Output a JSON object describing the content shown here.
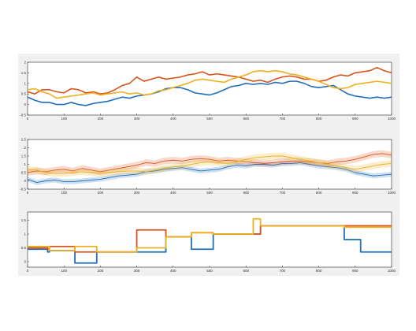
{
  "colors": {
    "series1": "#1f6fba",
    "series2": "#d9541a",
    "series3": "#edb120",
    "figure_bg": "#f0f0f0",
    "axes_bg": "#ffffff",
    "axis": "#262626"
  },
  "chart_data": [
    {
      "type": "line",
      "x_ticks": [
        "0",
        "100",
        "200",
        "300",
        "400",
        "500",
        "600",
        "700",
        "800",
        "900",
        "1000"
      ],
      "y_ticks": [
        "-0.5",
        "0",
        "0.5",
        "1",
        "1.5",
        "2"
      ],
      "xlim": [
        0,
        1000
      ],
      "ylim": [
        -0.5,
        2
      ],
      "series": [
        {
          "color": "series1",
          "x": [
            0,
            20,
            40,
            60,
            80,
            100,
            120,
            140,
            160,
            180,
            200,
            220,
            240,
            260,
            280,
            300,
            320,
            340,
            360,
            380,
            400,
            420,
            440,
            460,
            480,
            500,
            520,
            540,
            560,
            580,
            600,
            620,
            640,
            660,
            680,
            700,
            720,
            740,
            760,
            780,
            800,
            820,
            840,
            860,
            880,
            900,
            920,
            940,
            960,
            980,
            1000
          ],
          "y": [
            0.35,
            0.2,
            0.1,
            0.1,
            0.0,
            0.0,
            0.1,
            0.0,
            -0.05,
            0.05,
            0.1,
            0.15,
            0.25,
            0.35,
            0.3,
            0.4,
            0.45,
            0.5,
            0.6,
            0.75,
            0.8,
            0.8,
            0.7,
            0.55,
            0.5,
            0.45,
            0.55,
            0.7,
            0.85,
            0.9,
            1.0,
            0.95,
            1.0,
            0.95,
            1.05,
            1.0,
            1.1,
            1.1,
            1.0,
            0.85,
            0.8,
            0.85,
            0.9,
            0.7,
            0.5,
            0.4,
            0.35,
            0.3,
            0.35,
            0.3,
            0.35
          ]
        },
        {
          "color": "series2",
          "x": [
            0,
            20,
            40,
            60,
            80,
            100,
            120,
            140,
            160,
            180,
            200,
            220,
            240,
            260,
            280,
            300,
            320,
            340,
            360,
            380,
            400,
            420,
            440,
            460,
            480,
            500,
            520,
            540,
            560,
            580,
            600,
            620,
            640,
            660,
            680,
            700,
            720,
            740,
            760,
            780,
            800,
            820,
            840,
            860,
            880,
            900,
            920,
            940,
            960,
            980,
            1000
          ],
          "y": [
            0.6,
            0.5,
            0.7,
            0.7,
            0.6,
            0.55,
            0.75,
            0.7,
            0.55,
            0.6,
            0.5,
            0.55,
            0.7,
            0.9,
            1.0,
            1.3,
            1.1,
            1.2,
            1.3,
            1.2,
            1.25,
            1.3,
            1.4,
            1.45,
            1.55,
            1.4,
            1.45,
            1.4,
            1.35,
            1.3,
            1.2,
            1.1,
            1.15,
            1.05,
            1.2,
            1.3,
            1.35,
            1.3,
            1.2,
            1.2,
            1.1,
            1.15,
            1.3,
            1.4,
            1.35,
            1.5,
            1.55,
            1.6,
            1.75,
            1.6,
            1.5
          ]
        },
        {
          "color": "series3",
          "x": [
            0,
            20,
            40,
            60,
            80,
            100,
            120,
            140,
            160,
            180,
            200,
            220,
            240,
            260,
            280,
            300,
            320,
            340,
            360,
            380,
            400,
            420,
            440,
            460,
            480,
            500,
            520,
            540,
            560,
            580,
            600,
            620,
            640,
            660,
            680,
            700,
            720,
            740,
            760,
            780,
            800,
            820,
            840,
            860,
            880,
            900,
            920,
            940,
            960,
            980,
            1000
          ],
          "y": [
            0.7,
            0.75,
            0.6,
            0.5,
            0.3,
            0.35,
            0.4,
            0.45,
            0.5,
            0.55,
            0.45,
            0.5,
            0.55,
            0.6,
            0.5,
            0.55,
            0.45,
            0.5,
            0.65,
            0.7,
            0.8,
            0.9,
            1.0,
            1.15,
            1.2,
            1.15,
            1.1,
            1.05,
            1.2,
            1.3,
            1.4,
            1.55,
            1.6,
            1.55,
            1.6,
            1.55,
            1.45,
            1.4,
            1.3,
            1.2,
            1.1,
            0.95,
            0.8,
            0.75,
            0.8,
            0.95,
            1.0,
            1.05,
            1.1,
            1.05,
            1.0
          ]
        }
      ]
    },
    {
      "type": "area",
      "x_ticks": [
        "0",
        "100",
        "200",
        "300",
        "400",
        "500",
        "600",
        "700",
        "800",
        "900",
        "1000"
      ],
      "y_ticks": [
        "-0.5",
        "0",
        "0.5",
        "1",
        "1.5",
        "2",
        "2.5"
      ],
      "xlim": [
        0,
        1000
      ],
      "ylim": [
        -0.5,
        2.5
      ],
      "series": [
        {
          "color": "series1",
          "band": 0.15,
          "x": [
            0,
            25,
            50,
            75,
            100,
            125,
            150,
            175,
            200,
            225,
            250,
            275,
            300,
            325,
            350,
            375,
            400,
            425,
            450,
            475,
            500,
            525,
            550,
            575,
            600,
            625,
            650,
            675,
            700,
            725,
            750,
            775,
            800,
            825,
            850,
            875,
            900,
            925,
            950,
            975,
            1000
          ],
          "y": [
            0.1,
            -0.1,
            0.0,
            0.05,
            -0.05,
            -0.05,
            0.0,
            0.05,
            0.1,
            0.2,
            0.3,
            0.35,
            0.4,
            0.55,
            0.6,
            0.7,
            0.75,
            0.8,
            0.7,
            0.6,
            0.65,
            0.7,
            0.85,
            0.95,
            0.9,
            1.0,
            1.0,
            0.95,
            1.05,
            1.05,
            1.1,
            1.0,
            0.9,
            0.85,
            0.8,
            0.7,
            0.5,
            0.4,
            0.3,
            0.35,
            0.4
          ]
        },
        {
          "color": "series2",
          "band": 0.2,
          "x": [
            0,
            25,
            50,
            75,
            100,
            125,
            150,
            175,
            200,
            225,
            250,
            275,
            300,
            325,
            350,
            375,
            400,
            425,
            450,
            475,
            500,
            525,
            550,
            575,
            600,
            625,
            650,
            675,
            700,
            725,
            750,
            775,
            800,
            825,
            850,
            875,
            900,
            925,
            950,
            975,
            1000
          ],
          "y": [
            0.5,
            0.6,
            0.55,
            0.65,
            0.7,
            0.6,
            0.75,
            0.65,
            0.55,
            0.65,
            0.75,
            0.85,
            0.95,
            1.1,
            1.05,
            1.2,
            1.25,
            1.2,
            1.3,
            1.35,
            1.3,
            1.2,
            1.25,
            1.2,
            1.15,
            1.1,
            1.05,
            1.1,
            1.15,
            1.2,
            1.2,
            1.15,
            1.1,
            1.05,
            1.15,
            1.2,
            1.3,
            1.45,
            1.6,
            1.65,
            1.55
          ]
        },
        {
          "color": "series3",
          "band": 0.2,
          "x": [
            0,
            25,
            50,
            75,
            100,
            125,
            150,
            175,
            200,
            225,
            250,
            275,
            300,
            325,
            350,
            375,
            400,
            425,
            450,
            475,
            500,
            525,
            550,
            575,
            600,
            625,
            650,
            675,
            700,
            725,
            750,
            775,
            800,
            825,
            850,
            875,
            900,
            925,
            950,
            975,
            1000
          ],
          "y": [
            0.7,
            0.65,
            0.5,
            0.45,
            0.45,
            0.5,
            0.55,
            0.5,
            0.45,
            0.5,
            0.55,
            0.6,
            0.6,
            0.55,
            0.65,
            0.75,
            0.85,
            0.9,
            1.0,
            1.1,
            1.15,
            1.1,
            1.05,
            1.15,
            1.3,
            1.4,
            1.45,
            1.5,
            1.5,
            1.4,
            1.3,
            1.2,
            1.1,
            1.0,
            0.9,
            0.8,
            0.7,
            0.8,
            0.9,
            1.0,
            1.05
          ]
        }
      ]
    },
    {
      "type": "line",
      "step": true,
      "x_ticks": [
        "0",
        "100",
        "200",
        "300",
        "400",
        "500",
        "600",
        "700",
        "800",
        "900",
        "1000"
      ],
      "y_ticks": [
        "0",
        "0.5",
        "1",
        "1.5"
      ],
      "xlim": [
        0,
        1000
      ],
      "ylim": [
        -0.2,
        1.8
      ],
      "series": [
        {
          "color": "series1",
          "x": [
            0,
            55,
            60,
            130,
            190,
            300,
            380,
            450,
            510,
            620,
            640,
            870,
            915,
            1000
          ],
          "y": [
            0.45,
            0.35,
            0.4,
            -0.05,
            0.35,
            0.35,
            0.9,
            0.45,
            1.0,
            1.0,
            1.3,
            0.8,
            0.35,
            0.35
          ]
        },
        {
          "color": "series2",
          "x": [
            0,
            55,
            60,
            130,
            190,
            300,
            380,
            450,
            510,
            620,
            640,
            870,
            915,
            1000
          ],
          "y": [
            0.5,
            0.45,
            0.55,
            0.35,
            0.35,
            1.15,
            0.9,
            1.05,
            1.0,
            1.0,
            1.3,
            1.3,
            1.3,
            1.3
          ]
        },
        {
          "color": "series3",
          "x": [
            0,
            55,
            60,
            130,
            190,
            300,
            380,
            450,
            510,
            620,
            640,
            870,
            915,
            1000
          ],
          "y": [
            0.55,
            0.55,
            0.4,
            0.55,
            0.35,
            0.5,
            0.9,
            1.05,
            1.0,
            1.55,
            1.3,
            1.25,
            1.25,
            1.25
          ]
        }
      ]
    }
  ]
}
